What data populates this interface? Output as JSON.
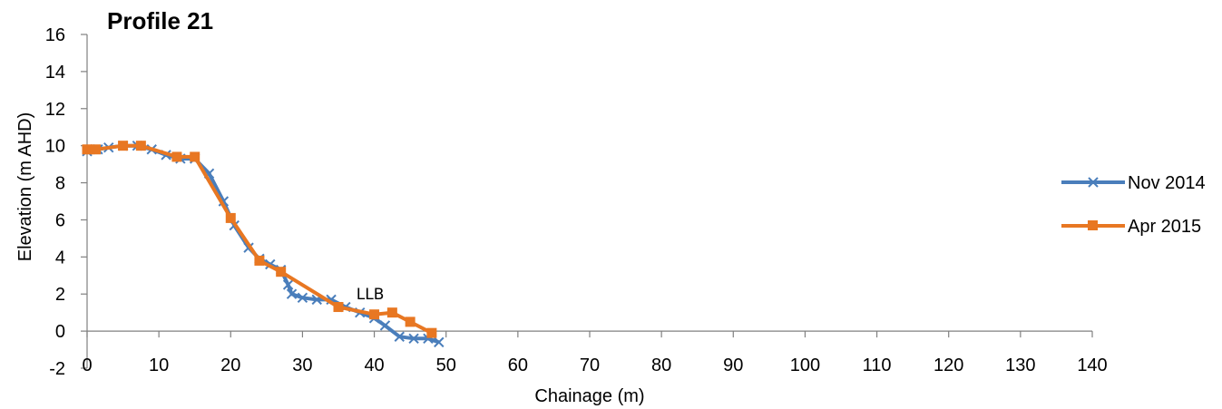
{
  "chart_data": {
    "type": "line",
    "title": "Profile 21",
    "xlabel": "Chainage (m)",
    "ylabel": "Elevation (m AHD)",
    "xlim": [
      0,
      140
    ],
    "ylim": [
      -2,
      16
    ],
    "x_ticks": [
      0,
      10,
      20,
      30,
      40,
      50,
      60,
      70,
      80,
      90,
      100,
      110,
      120,
      130,
      140
    ],
    "y_ticks": [
      -2,
      0,
      2,
      4,
      6,
      8,
      10,
      12,
      14,
      16
    ],
    "x_tick_labels": [
      "0",
      "10",
      "20",
      "30",
      "40",
      "50",
      "60",
      "70",
      "80",
      "90",
      "100",
      "110",
      "120",
      "130",
      "140"
    ],
    "y_tick_labels": [
      "-2",
      "0",
      "2",
      "4",
      "6",
      "8",
      "10",
      "12",
      "14",
      "16"
    ],
    "grid": false,
    "legend_position": "right",
    "annotations": [
      {
        "text": "LLB",
        "x": 37.5,
        "y": 2.0
      }
    ],
    "series": [
      {
        "name": "Nov 2014",
        "color": "#4a7ebb",
        "marker": "x",
        "x": [
          0,
          1.5,
          3,
          5,
          7,
          9,
          11,
          13,
          15,
          17,
          19,
          20.5,
          22.5,
          24,
          25.5,
          27,
          28,
          28.5,
          30,
          32,
          34,
          36,
          38,
          40,
          41.5,
          43.5,
          45.5,
          47.5,
          49
        ],
        "y": [
          9.7,
          9.8,
          9.9,
          10.0,
          10.0,
          9.8,
          9.5,
          9.3,
          9.3,
          8.5,
          7.0,
          5.7,
          4.5,
          3.9,
          3.6,
          3.3,
          2.5,
          2.0,
          1.8,
          1.7,
          1.7,
          1.3,
          1.0,
          0.7,
          0.3,
          -0.3,
          -0.4,
          -0.4,
          -0.6
        ]
      },
      {
        "name": "Apr 2015",
        "color": "#e87722",
        "marker": "square",
        "x": [
          0,
          1.2,
          5,
          7.5,
          12.5,
          15,
          20,
          24,
          27,
          35,
          40,
          42.5,
          45,
          48
        ],
        "y": [
          9.8,
          9.8,
          10.0,
          10.0,
          9.4,
          9.4,
          6.1,
          3.8,
          3.2,
          1.3,
          0.9,
          1.0,
          0.5,
          -0.1
        ]
      }
    ]
  }
}
